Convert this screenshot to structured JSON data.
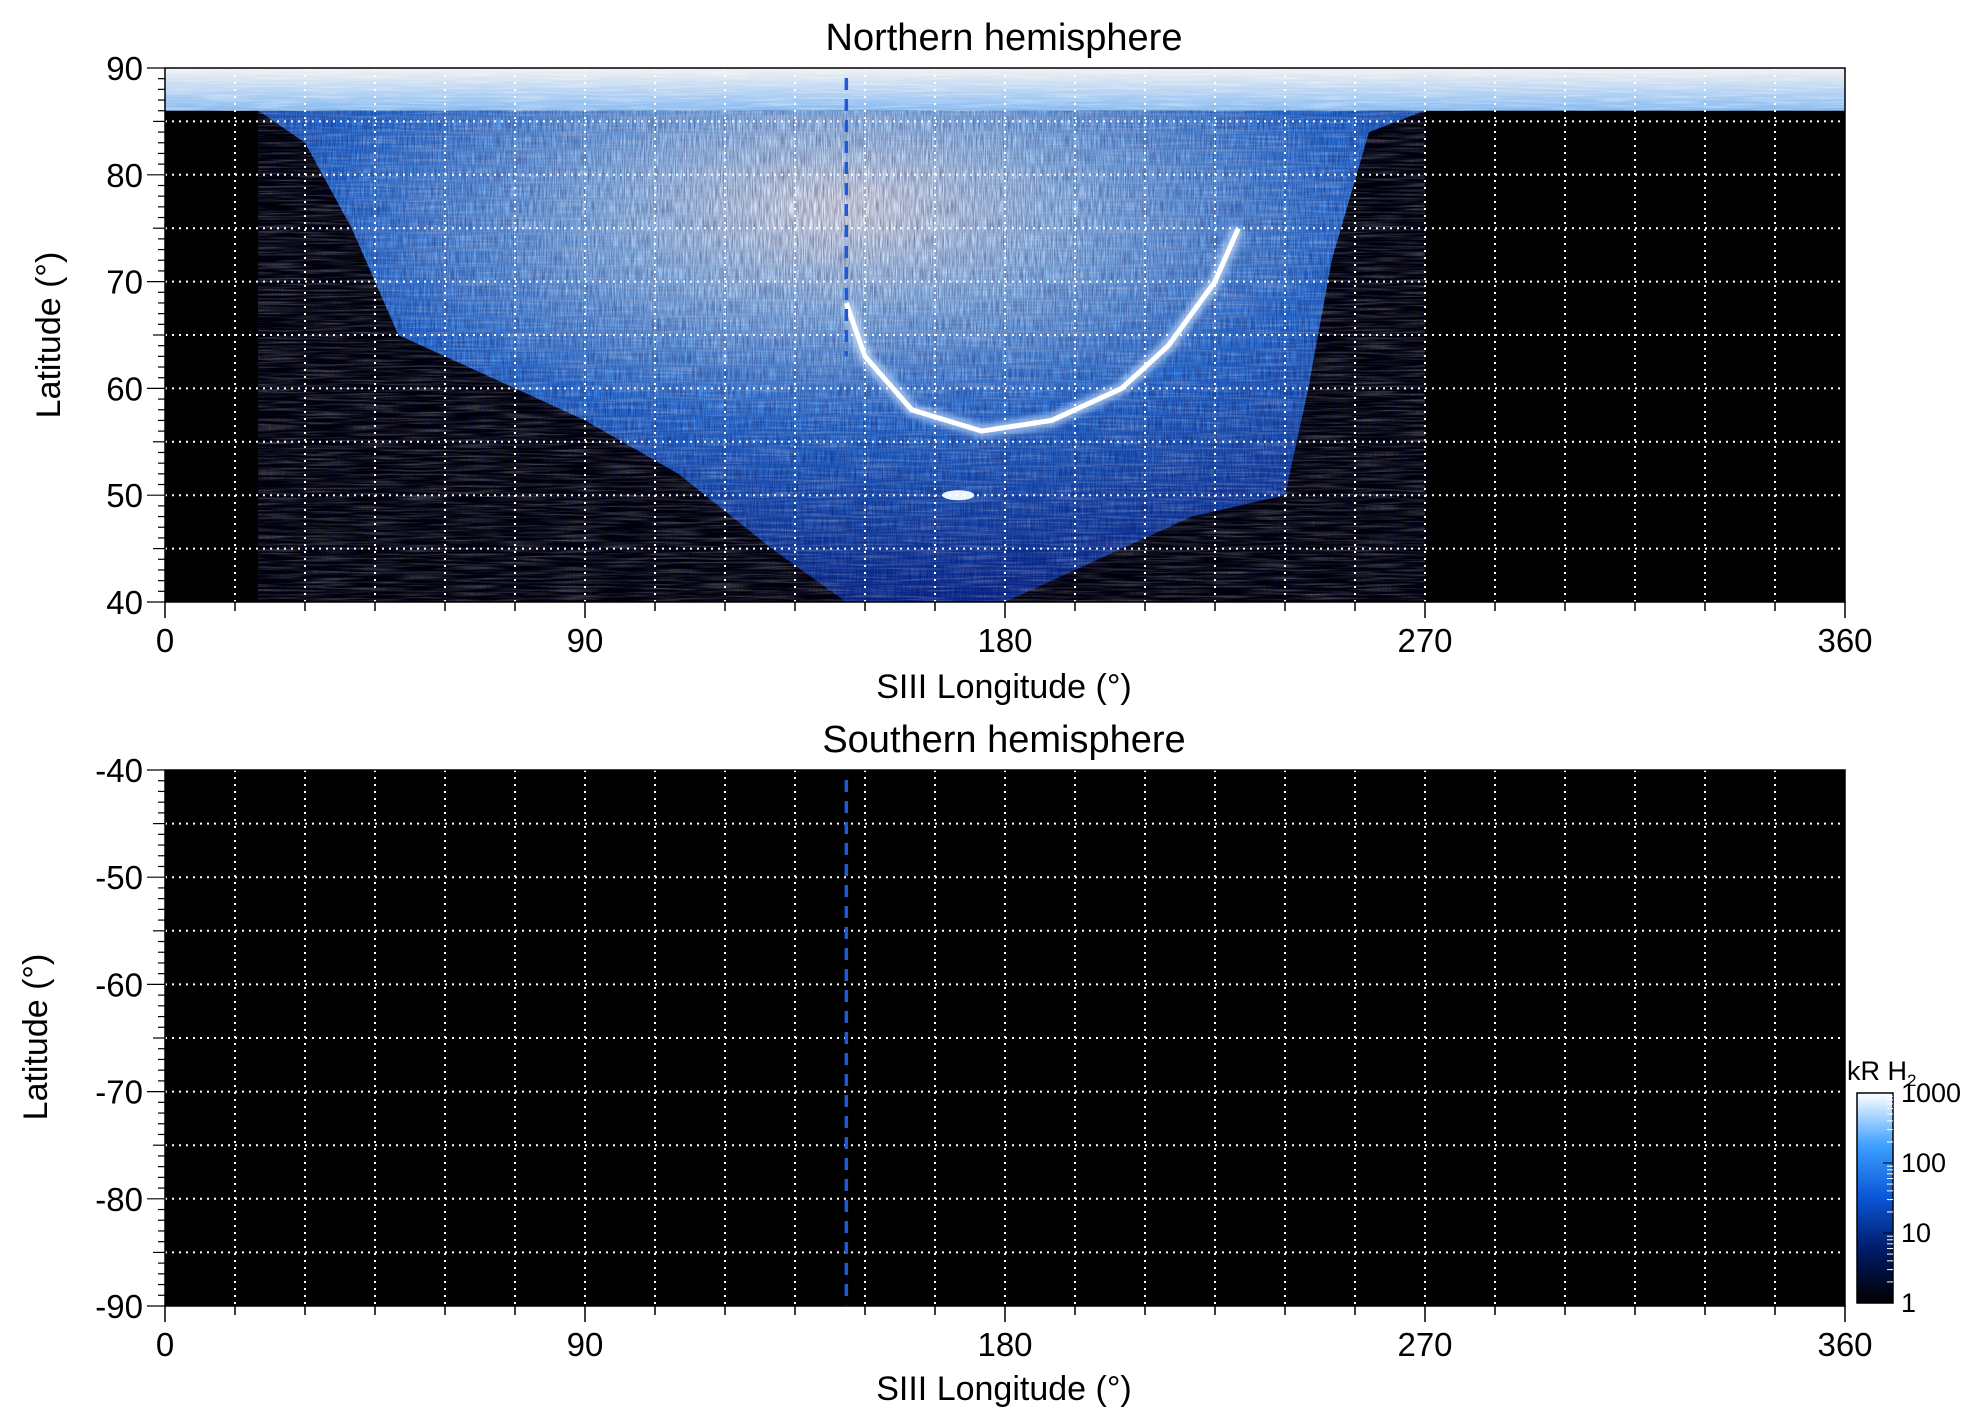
{
  "chart_data": [
    {
      "type": "heatmap",
      "title": "Northern hemisphere",
      "xlabel": "SIII Longitude (°)",
      "ylabel": "Latitude (°)",
      "xlim": [
        0,
        360
      ],
      "ylim": [
        40,
        90
      ],
      "xticks": [
        0,
        90,
        180,
        270,
        360
      ],
      "yticks": [
        40,
        50,
        60,
        70,
        80,
        90
      ],
      "grid": true,
      "grid_style": "white dotted",
      "reference_line": {
        "longitude": 146,
        "style": "dashed",
        "color": "#1e5ad6"
      },
      "features": {
        "polar_cap_coverage_lat": [
          86,
          90
        ],
        "observed_region_boundary": [
          [
            20,
            86
          ],
          [
            30,
            83
          ],
          [
            40,
            75
          ],
          [
            50,
            65
          ],
          [
            90,
            57
          ],
          [
            110,
            52
          ],
          [
            130,
            45
          ],
          [
            146,
            40
          ],
          [
            180,
            40
          ],
          [
            200,
            44
          ],
          [
            220,
            48
          ],
          [
            240,
            50
          ],
          [
            245,
            60
          ],
          [
            250,
            72
          ],
          [
            258,
            84
          ],
          [
            270,
            86
          ]
        ],
        "main_oval": [
          [
            146,
            68
          ],
          [
            150,
            63
          ],
          [
            160,
            58
          ],
          [
            175,
            56
          ],
          [
            190,
            57
          ],
          [
            205,
            60
          ],
          [
            215,
            64
          ],
          [
            225,
            70
          ],
          [
            230,
            75
          ]
        ],
        "bright_spot": [
          170,
          50
        ]
      }
    },
    {
      "type": "heatmap",
      "title": "Southern hemisphere",
      "xlabel": "SIII Longitude (°)",
      "ylabel": "Latitude (°)",
      "xlim": [
        0,
        360
      ],
      "ylim": [
        -90,
        -40
      ],
      "xticks": [
        0,
        90,
        180,
        270,
        360
      ],
      "yticks": [
        -40,
        -50,
        -60,
        -70,
        -80,
        -90
      ],
      "grid": true,
      "grid_style": "white dotted",
      "reference_line": {
        "longitude": 146,
        "style": "dashed",
        "color": "#1e5ad6"
      },
      "features": {
        "observed_region_boundary": []
      }
    }
  ],
  "colorbar": {
    "label_main": "kR H",
    "label_sub": "2",
    "scale": "log",
    "range": [
      1,
      1000
    ],
    "ticks": [
      1,
      10,
      100,
      1000
    ],
    "colors": [
      "#000000",
      "#001a66",
      "#0a55d6",
      "#3da0ff",
      "#ffffff"
    ]
  }
}
